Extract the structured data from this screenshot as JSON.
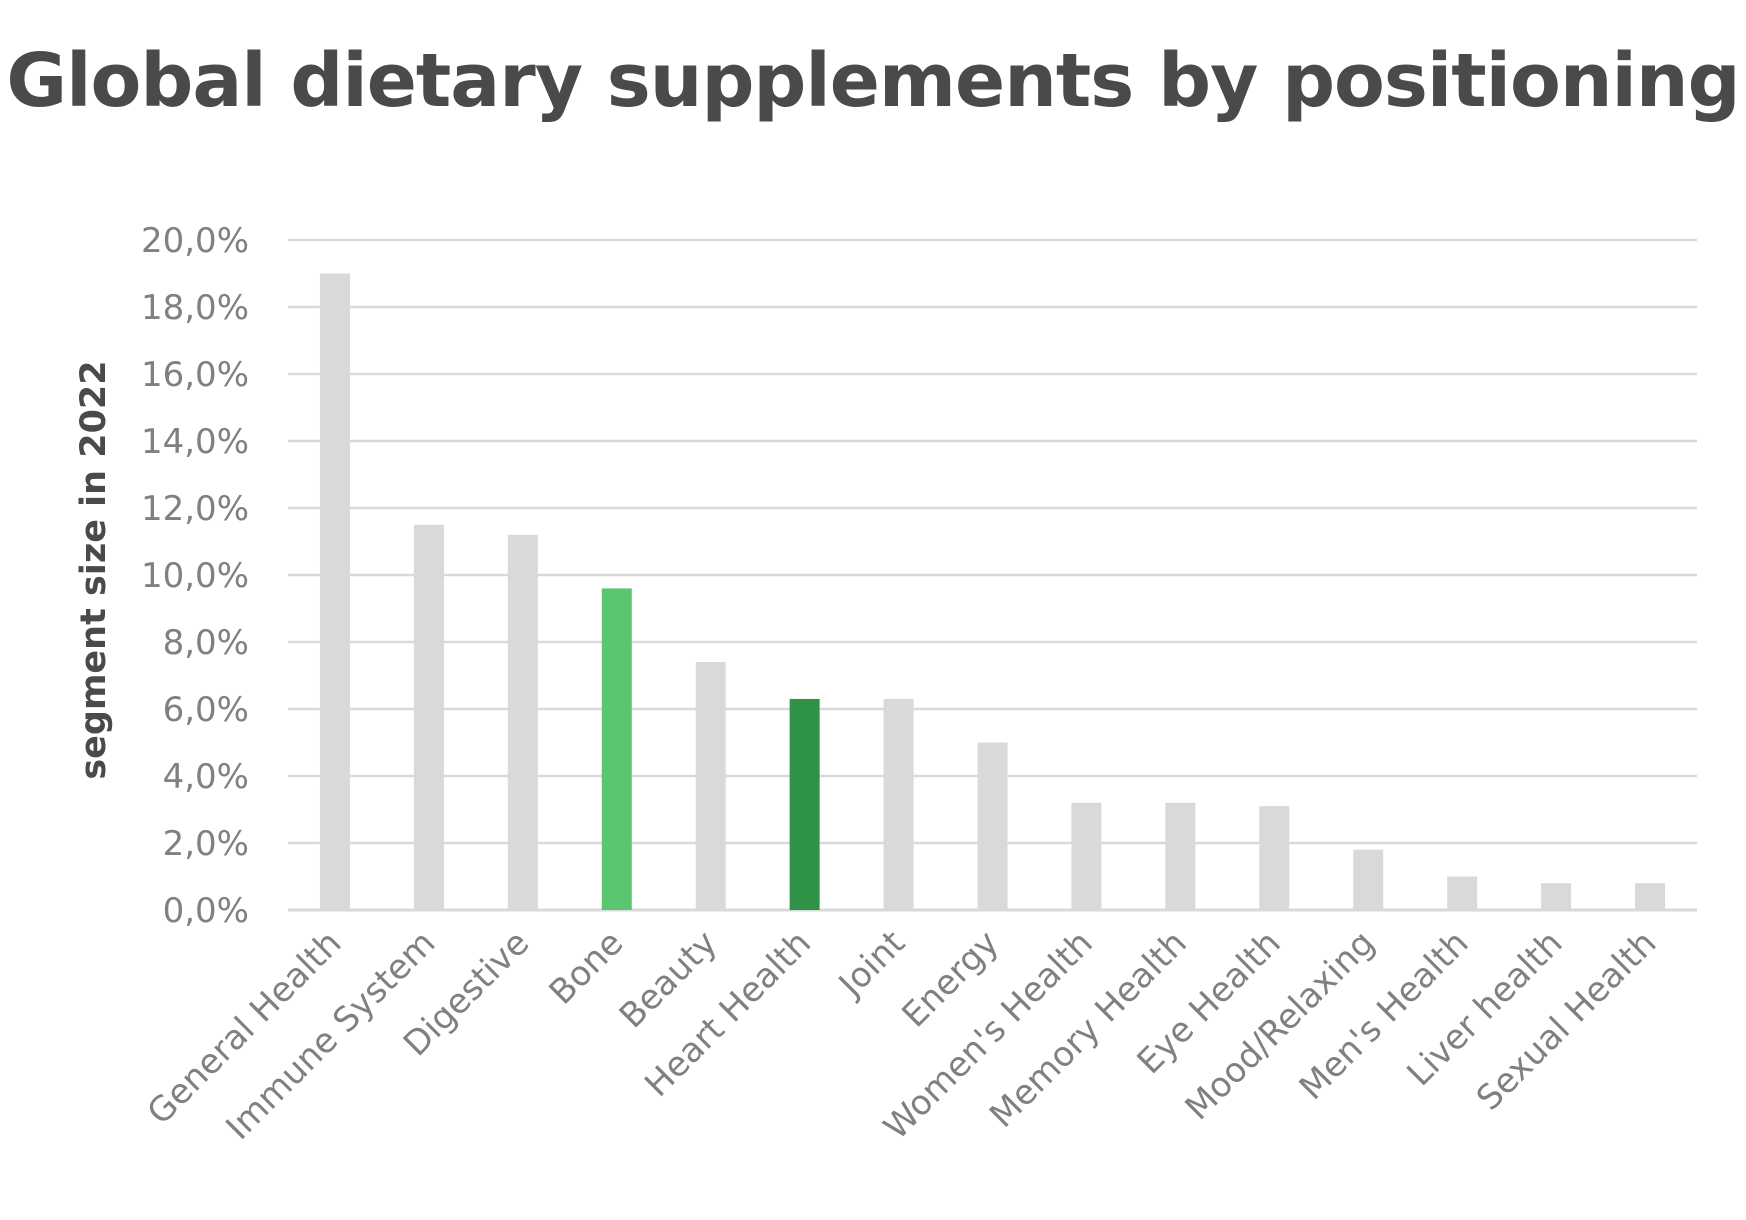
{
  "chart_data": {
    "type": "bar",
    "title": "Global dietary supplements by positioning",
    "ylabel": "segment size in 2022",
    "xlabel": "",
    "ylim": [
      0,
      20
    ],
    "yticks": [
      0,
      2,
      4,
      6,
      8,
      10,
      12,
      14,
      16,
      18,
      20
    ],
    "ytick_labels": [
      "0,0%",
      "2,0%",
      "4,0%",
      "6,0%",
      "8,0%",
      "10,0%",
      "12,0%",
      "14,0%",
      "16,0%",
      "18,0%",
      "20,0%"
    ],
    "grid": true,
    "categories": [
      "General Health",
      "Immune System",
      "Digestive",
      "Bone",
      "Beauty",
      "Heart Health",
      "Joint",
      "Energy",
      "Women's Health",
      "Memory Health",
      "Eye Health",
      "Mood/Relaxing",
      "Men's Health",
      "Liver health",
      "Sexual Health"
    ],
    "values": [
      19.0,
      11.5,
      11.2,
      9.6,
      7.4,
      6.3,
      6.3,
      5.0,
      3.2,
      3.2,
      3.1,
      1.8,
      1.0,
      0.8,
      0.8
    ],
    "bar_colors": [
      "#d9d9d9",
      "#d9d9d9",
      "#d9d9d9",
      "#5ac770",
      "#d9d9d9",
      "#2e9346",
      "#d9d9d9",
      "#d9d9d9",
      "#d9d9d9",
      "#d9d9d9",
      "#d9d9d9",
      "#d9d9d9",
      "#d9d9d9",
      "#d9d9d9",
      "#d9d9d9"
    ],
    "gridline_color": "#d9d9d9",
    "text_color": "#808080",
    "title_color": "#4a4a4a"
  }
}
